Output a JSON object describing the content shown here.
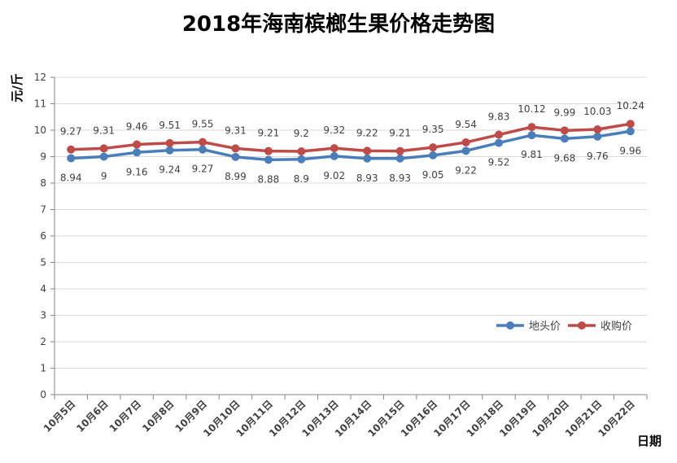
{
  "chart_data": {
    "type": "line",
    "title": "2018年海南槟榔生果价格走势图",
    "ylabel": "元/斤",
    "xlabel": "日期",
    "ylim": [
      0,
      12
    ],
    "yticks": [
      0,
      1,
      2,
      3,
      4,
      5,
      6,
      7,
      8,
      9,
      10,
      11,
      12
    ],
    "grid": true,
    "legend_position": "lower-right",
    "categories": [
      "10月5日",
      "10月6日",
      "10月7日",
      "10月8日",
      "10月9日",
      "10月10日",
      "10月11日",
      "10月12日",
      "10月13日",
      "10月14日",
      "10月15日",
      "10月16日",
      "10月17日",
      "10月18日",
      "10月19日",
      "10月20日",
      "10月21日",
      "10月22日"
    ],
    "series": [
      {
        "name": "地头价",
        "color": "#4a7ebb",
        "values": [
          8.94,
          9,
          9.16,
          9.24,
          9.27,
          8.99,
          8.88,
          8.9,
          9.02,
          8.93,
          8.93,
          9.05,
          9.22,
          9.52,
          9.81,
          9.68,
          9.76,
          9.96
        ],
        "labels": [
          "8.94",
          "9",
          "9.16",
          "9.24",
          "9.27",
          "8.99",
          "8.88",
          "8.9",
          "9.02",
          "8.93",
          "8.93",
          "9.05",
          "9.22",
          "9.52",
          "9.81",
          "9.68",
          "9.76",
          "9.96"
        ]
      },
      {
        "name": "收购价",
        "color": "#be4b48",
        "values": [
          9.27,
          9.31,
          9.46,
          9.51,
          9.55,
          9.31,
          9.21,
          9.2,
          9.32,
          9.22,
          9.21,
          9.35,
          9.54,
          9.83,
          10.12,
          9.99,
          10.03,
          10.24
        ],
        "labels": [
          "9.27",
          "9.31",
          "9.46",
          "9.51",
          "9.55",
          "9.31",
          "9.21",
          "9.2",
          "9.32",
          "9.22",
          "9.21",
          "9.35",
          "9.54",
          "9.83",
          "10.12",
          "9.99",
          "10.03",
          "10.24"
        ]
      }
    ]
  }
}
